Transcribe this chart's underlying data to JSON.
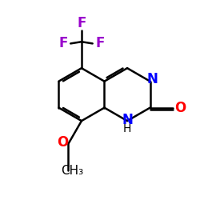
{
  "background_color": "#ffffff",
  "bond_color": "#000000",
  "bond_width": 1.8,
  "atom_colors": {
    "N": "#0000ff",
    "O": "#ff0000",
    "F": "#9900cc"
  },
  "font_size_main": 12,
  "font_size_sub": 10,
  "xlim": [
    0.5,
    9.5
  ],
  "ylim": [
    1.0,
    9.0
  ],
  "L": 1.2
}
